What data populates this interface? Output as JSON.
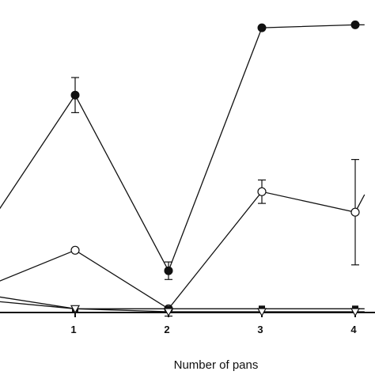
{
  "chart_data": {
    "type": "line",
    "xlabel": "Number of pans",
    "x_ticks": [
      1,
      2,
      3,
      4
    ],
    "xlim": [
      0,
      4.1
    ],
    "ylim": [
      0,
      100
    ],
    "grid": false,
    "series": [
      {
        "marker": "filled-circle",
        "x": [
          0,
          1,
          2,
          3,
          4,
          4.1
        ],
        "y": [
          26,
          74,
          14,
          97,
          98,
          98
        ],
        "err": [
          null,
          6,
          3,
          null,
          null,
          null
        ]
      },
      {
        "marker": "open-circle",
        "x": [
          0,
          1,
          2,
          3,
          4,
          4.1
        ],
        "y": [
          8,
          21,
          1,
          41,
          34,
          40
        ],
        "err": [
          null,
          null,
          null,
          4,
          18,
          null
        ]
      },
      {
        "marker": "filled-square",
        "x": [
          0,
          1,
          2,
          3,
          4,
          4.1
        ],
        "y": [
          6,
          1,
          1,
          1,
          1,
          1
        ],
        "err": [
          null,
          null,
          null,
          null,
          null,
          null
        ]
      },
      {
        "marker": "open-triangle-down",
        "x": [
          0,
          1,
          2,
          3,
          4,
          4.1
        ],
        "y": [
          4,
          1,
          0,
          0,
          0,
          0
        ],
        "err": [
          null,
          null,
          1.5,
          null,
          null,
          null
        ]
      }
    ],
    "colors": {
      "line": "#111111",
      "marker_fill": "#111111",
      "open_fill": "#ffffff"
    }
  }
}
